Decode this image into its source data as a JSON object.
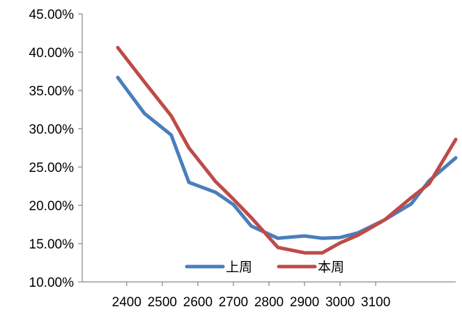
{
  "chart_data": {
    "type": "line",
    "title": "",
    "xlabel": "",
    "ylabel": "",
    "x": [
      2375,
      2450,
      2525,
      2575,
      2650,
      2700,
      2750,
      2825,
      2900,
      2950,
      3000,
      3050,
      3125,
      3200,
      3250,
      3325
    ],
    "x_ticks": [
      2400,
      2500,
      2600,
      2700,
      2800,
      2900,
      3000,
      3100
    ],
    "x_range": [
      2275,
      3325
    ],
    "ylim": [
      0.1,
      0.45
    ],
    "y_ticks": [
      0.1,
      0.15,
      0.2,
      0.25,
      0.3,
      0.35,
      0.4,
      0.45
    ],
    "y_tick_labels": [
      "10.00%",
      "15.00%",
      "20.00%",
      "25.00%",
      "30.00%",
      "35.00%",
      "40.00%",
      "45.00%"
    ],
    "grid": false,
    "legend_position": "bottom-right",
    "series": [
      {
        "name": "上周",
        "color": "#4a7ebb",
        "values": [
          0.367,
          0.32,
          0.292,
          0.23,
          0.217,
          0.201,
          0.173,
          0.157,
          0.16,
          0.157,
          0.158,
          0.164,
          0.181,
          0.202,
          0.232,
          0.262
        ]
      },
      {
        "name": "本周",
        "color": "#be4b48",
        "values": [
          0.406,
          0.361,
          0.317,
          0.275,
          0.231,
          0.208,
          0.184,
          0.145,
          0.138,
          0.138,
          0.151,
          0.161,
          0.181,
          0.21,
          0.228,
          0.286
        ]
      }
    ]
  }
}
